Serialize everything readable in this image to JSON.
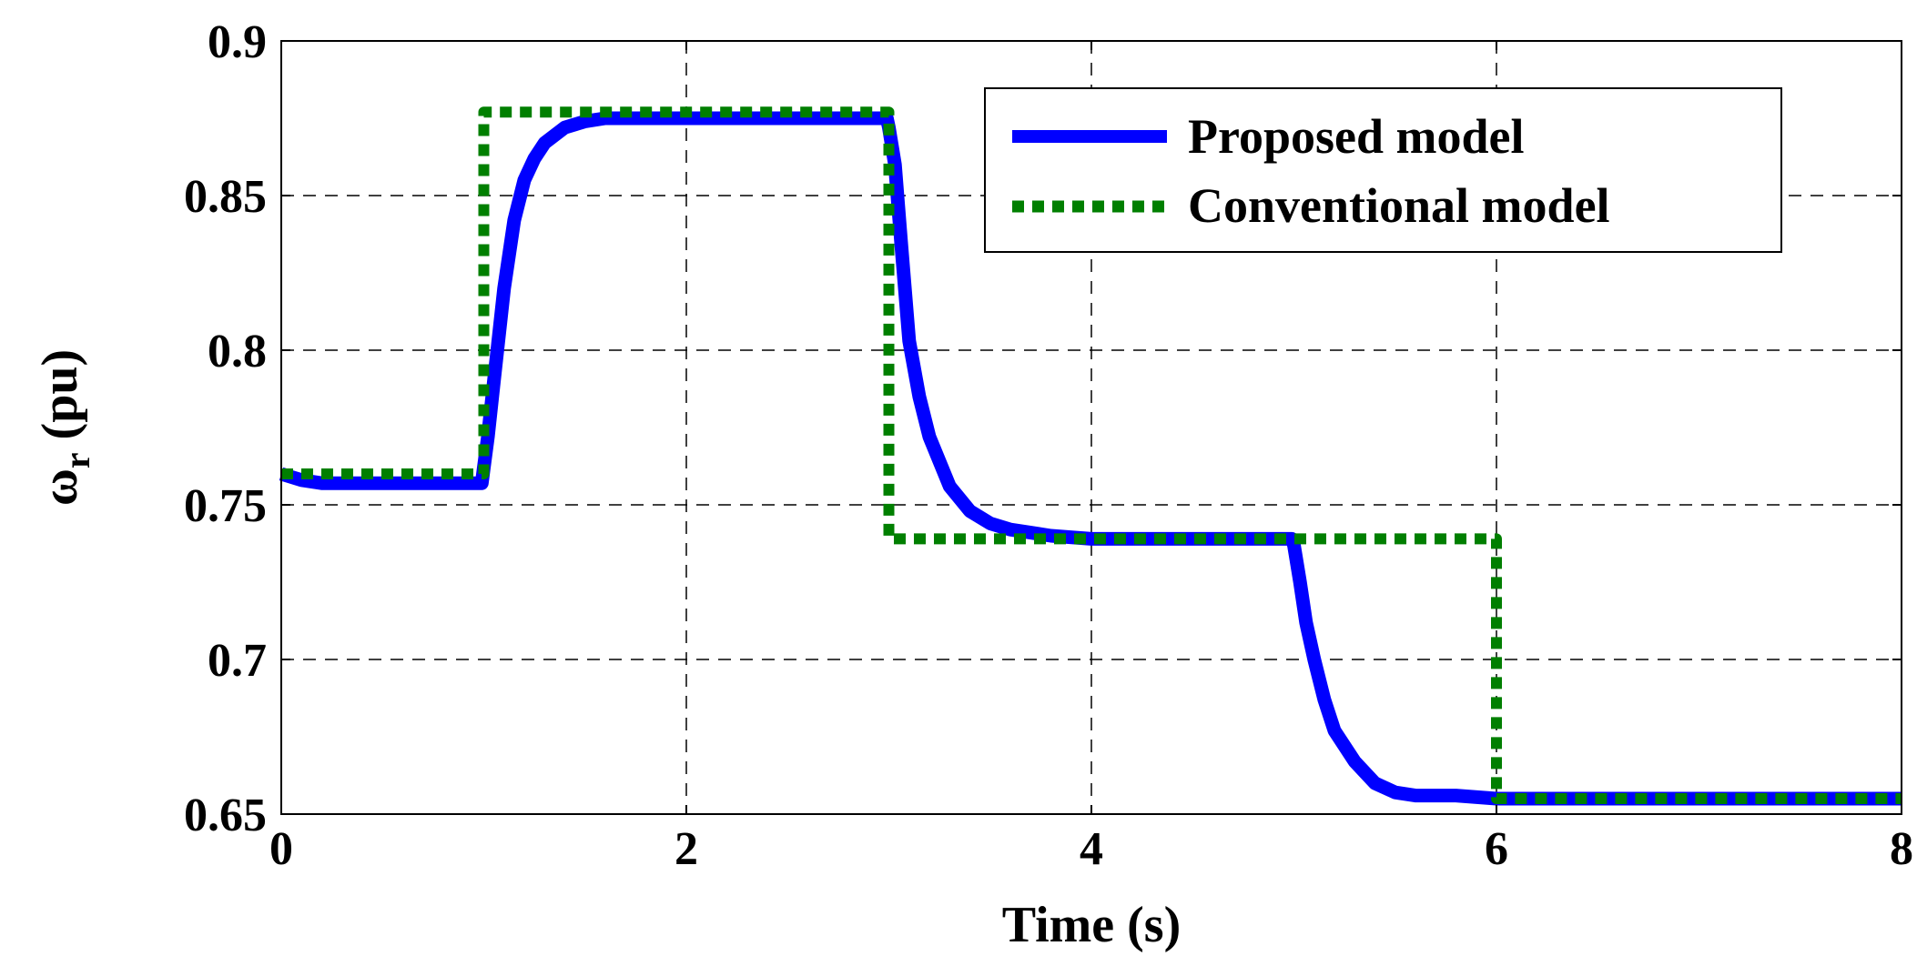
{
  "chart_data": {
    "type": "line",
    "title": "",
    "xlabel": "Time (s)",
    "ylabel_symbol": "ω",
    "ylabel_subscript": "r",
    "ylabel_unit": " (pu)",
    "xlim": [
      0,
      8
    ],
    "ylim": [
      0.65,
      0.9
    ],
    "xticks": [
      0,
      2,
      4,
      6,
      8
    ],
    "xtick_labels": [
      "0",
      "2",
      "4",
      "6",
      "8"
    ],
    "yticks": [
      0.65,
      0.7,
      0.75,
      0.8,
      0.85,
      0.9
    ],
    "ytick_labels": [
      "0.65",
      "0.7",
      "0.75",
      "0.8",
      "0.85",
      "0.9"
    ],
    "grid": true,
    "legend_position": "top-right",
    "series": [
      {
        "name": "Proposed model",
        "color": "#0000ff",
        "style": "solid",
        "x": [
          0,
          0.1,
          0.2,
          0.5,
          0.99,
          1.0,
          1.02,
          1.05,
          1.1,
          1.15,
          1.2,
          1.25,
          1.3,
          1.4,
          1.5,
          1.6,
          1.7,
          2.0,
          2.5,
          2.99,
          3.0,
          3.03,
          3.06,
          3.1,
          3.15,
          3.2,
          3.3,
          3.4,
          3.5,
          3.6,
          3.7,
          3.8,
          4.0,
          4.5,
          4.99,
          5.0,
          5.03,
          5.06,
          5.1,
          5.15,
          5.2,
          5.3,
          5.4,
          5.5,
          5.6,
          5.8,
          6.0,
          6.5,
          7.0,
          8.0
        ],
        "y": [
          0.76,
          0.758,
          0.757,
          0.757,
          0.757,
          0.762,
          0.772,
          0.79,
          0.82,
          0.842,
          0.855,
          0.862,
          0.867,
          0.872,
          0.874,
          0.875,
          0.875,
          0.875,
          0.875,
          0.875,
          0.872,
          0.86,
          0.835,
          0.803,
          0.785,
          0.772,
          0.756,
          0.748,
          0.744,
          0.742,
          0.741,
          0.74,
          0.739,
          0.739,
          0.739,
          0.737,
          0.725,
          0.712,
          0.7,
          0.687,
          0.677,
          0.667,
          0.66,
          0.657,
          0.656,
          0.656,
          0.655,
          0.655,
          0.655,
          0.655
        ]
      },
      {
        "name": "Conventional model",
        "color": "#007f00",
        "style": "dotted",
        "x": [
          0,
          1.0,
          1.0,
          3.0,
          3.0,
          6.0,
          6.0,
          8.0
        ],
        "y": [
          0.76,
          0.76,
          0.877,
          0.877,
          0.739,
          0.739,
          0.655,
          0.655
        ]
      }
    ]
  }
}
